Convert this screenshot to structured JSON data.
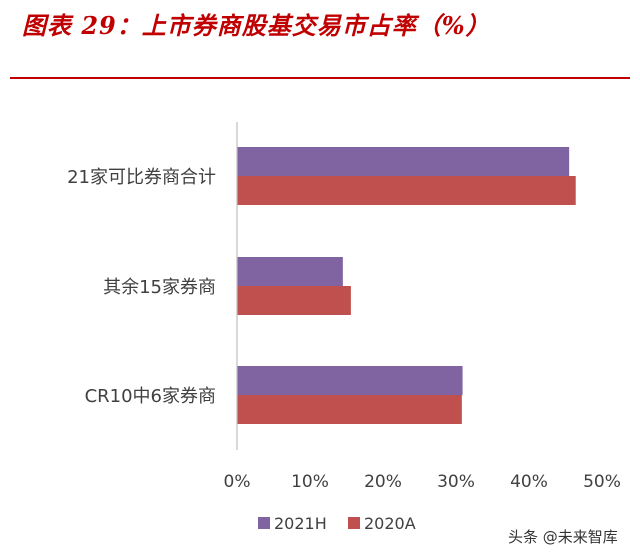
{
  "header": {
    "title": "图表 29：上市券商股基交易市占率（%）"
  },
  "watermark": "头条 @未来智库",
  "chart_data": {
    "type": "bar",
    "orientation": "horizontal",
    "title": "图表 29：上市券商股基交易市占率（%）",
    "categories": [
      "21家可比券商合计",
      "其余15家券商",
      "CR10中6家券商"
    ],
    "series": [
      {
        "name": "2021H",
        "color": "#8064a2",
        "values": [
          45.5,
          14.5,
          30.9
        ]
      },
      {
        "name": "2020A",
        "color": "#c0504d",
        "values": [
          46.4,
          15.6,
          30.8
        ]
      }
    ],
    "xlim": [
      0,
      50
    ],
    "xticks": [
      "0%",
      "10%",
      "20%",
      "30%",
      "40%",
      "50%"
    ],
    "xticks_values": [
      0,
      10,
      20,
      30,
      40,
      50
    ],
    "grid": false,
    "legend_position": "bottom"
  }
}
